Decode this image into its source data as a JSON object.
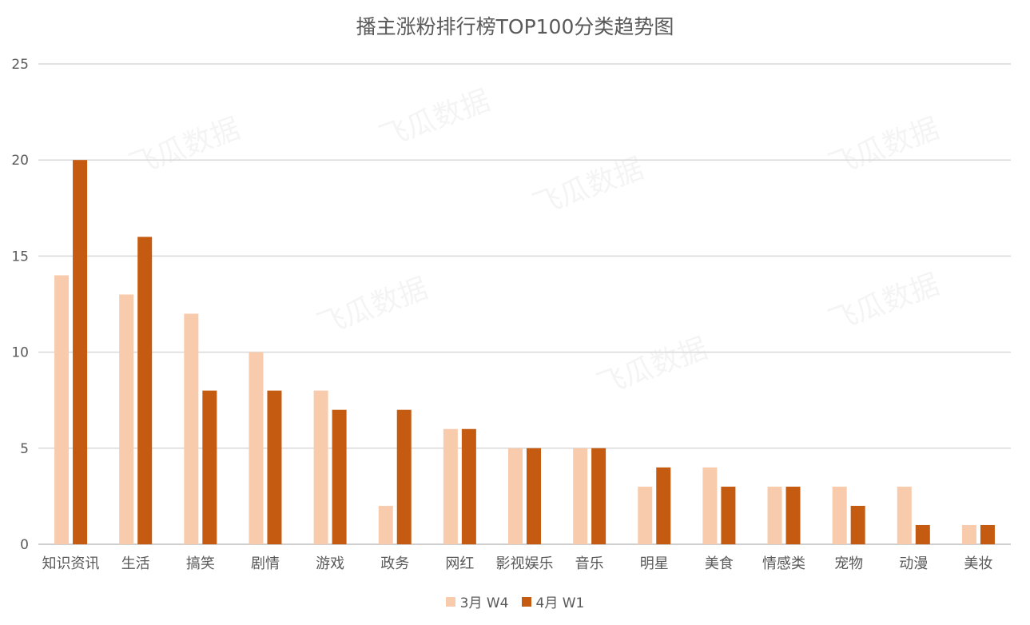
{
  "chart_data": {
    "type": "bar",
    "title": "播主涨粉排行榜TOP100分类趋势图",
    "xlabel": "",
    "ylabel": "",
    "ylim": [
      0,
      25
    ],
    "yticks": [
      0,
      5,
      10,
      15,
      20,
      25
    ],
    "grid": true,
    "legend_position": "bottom",
    "categories": [
      "知识资讯",
      "生活",
      "搞笑",
      "剧情",
      "游戏",
      "政务",
      "网红",
      "影视娱乐",
      "音乐",
      "明星",
      "美食",
      "情感类",
      "宠物",
      "动漫",
      "美妆"
    ],
    "series": [
      {
        "name": "3月 W4",
        "color": "#F8CBAD",
        "values": [
          14,
          13,
          12,
          10,
          8,
          2,
          6,
          5,
          5,
          3,
          4,
          3,
          3,
          3,
          1
        ]
      },
      {
        "name": "4月 W1",
        "color": "#C55A11",
        "values": [
          20,
          16,
          8,
          8,
          7,
          7,
          6,
          5,
          5,
          4,
          3,
          3,
          2,
          1,
          1
        ]
      }
    ],
    "watermark": "飞瓜数据"
  }
}
